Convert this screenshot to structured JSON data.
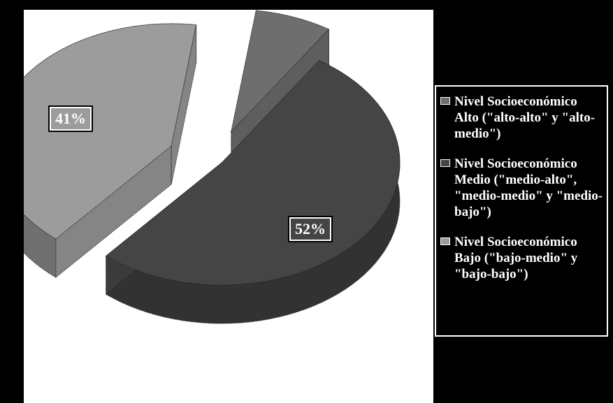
{
  "chart_data": {
    "type": "pie",
    "title": "",
    "categories": [
      "Nivel Socioeconómico Alto (\"alto-alto\" y \"alto-medio\")",
      "Nivel Socioeconómico Medio (\"medio-alto\", \"medio-medio\" y \"medio-bajo\")",
      "Nivel Socioeconómico Bajo (\"bajo-medio\" y \"bajo-bajo\")"
    ],
    "values": [
      7,
      52,
      41
    ],
    "data_labels": [
      "",
      "52%",
      "41%"
    ],
    "unit": "%",
    "style": "3d-exploded",
    "legend_position": "right",
    "colors": [
      "#6e6e6e",
      "#454545",
      "#9c9c9c"
    ]
  },
  "colors": {
    "background": "#000000",
    "plot_background": "#ffffff",
    "label_text": "#ffffff"
  }
}
